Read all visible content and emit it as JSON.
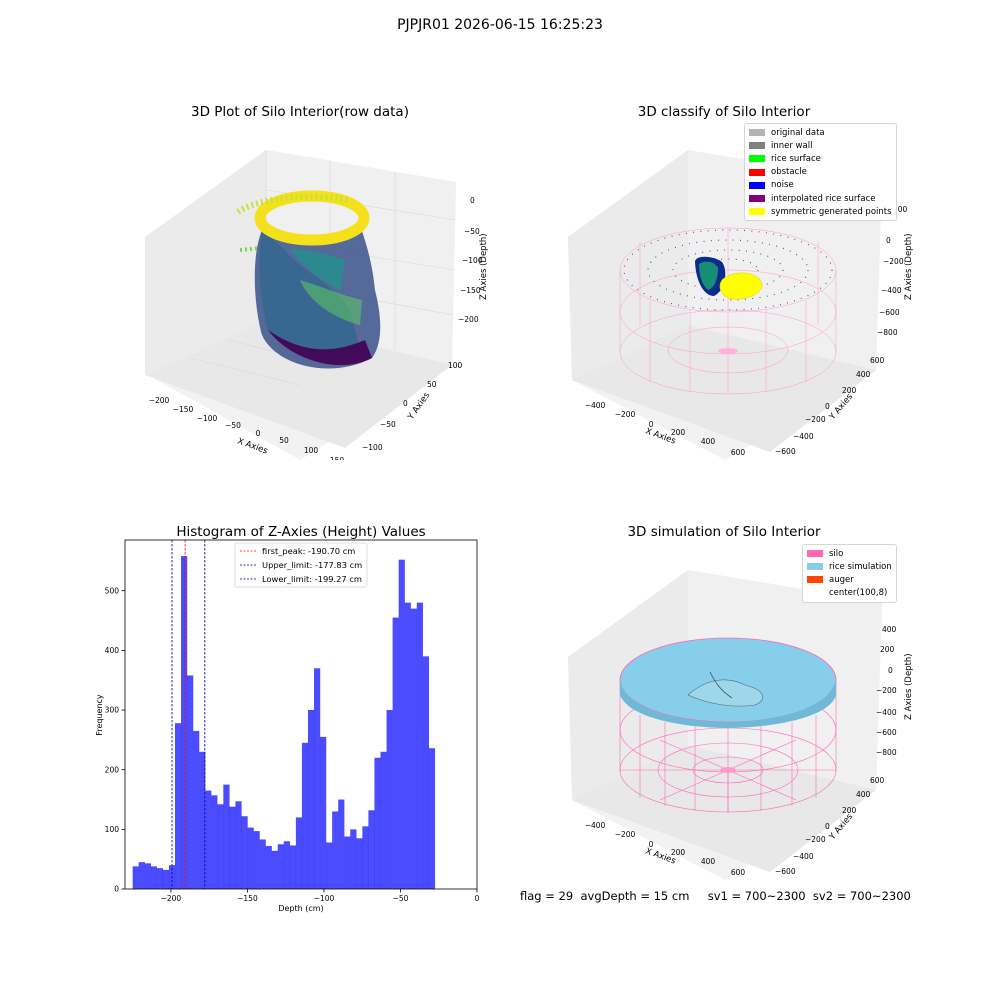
{
  "suptitle": "PJPJR01 2026-06-15 16:25:23",
  "panels": {
    "raw": {
      "title": "3D Plot of Silo Interior(row data)",
      "xlabel": "X Axies",
      "ylabel": "Y Axies",
      "zlabel": "Z Axies (Depth)",
      "xticks": [
        "−200",
        "−150",
        "−100",
        "−50",
        "0",
        "50",
        "100",
        "150"
      ],
      "yticks": [
        "100",
        "50",
        "0",
        "−50",
        "−100"
      ],
      "zticks": [
        "0",
        "−50",
        "−100",
        "−150",
        "−200"
      ],
      "colormap": "viridis"
    },
    "classify": {
      "title": "3D classify of Silo Interior",
      "xlabel": "X Axies",
      "ylabel": "Y Axies",
      "zlabel": "Z Axies (Depth)",
      "xticks": [
        "−400",
        "−200",
        "0",
        "200",
        "400",
        "600"
      ],
      "yticks": [
        "600",
        "400",
        "200",
        "0",
        "−200",
        "−400",
        "−600"
      ],
      "zticks": [
        "200",
        "0",
        "−200",
        "−400",
        "−600",
        "−800"
      ],
      "legend": [
        {
          "label": "original data",
          "color": "#b3b3b3"
        },
        {
          "label": "inner wall",
          "color": "#808080"
        },
        {
          "label": "rice surface",
          "color": "#00ff00"
        },
        {
          "label": "obstacle",
          "color": "#ff0000"
        },
        {
          "label": "noise",
          "color": "#0000ff"
        },
        {
          "label": "interpolated rice surface",
          "color": "#800080"
        },
        {
          "label": "symmetric generated points",
          "color": "#ffff00"
        }
      ]
    },
    "simulation": {
      "title": "3D simulation of Silo Interior",
      "xlabel": "X Axies",
      "ylabel": "Y Axies",
      "zlabel": "Z Axies (Depth)",
      "xticks": [
        "−400",
        "−200",
        "0",
        "200",
        "400",
        "600"
      ],
      "yticks": [
        "600",
        "400",
        "200",
        "0",
        "−200",
        "−400",
        "−600"
      ],
      "zticks": [
        "400",
        "200",
        "0",
        "−200",
        "−400",
        "−600",
        "−800"
      ],
      "legend": [
        {
          "label": "silo",
          "color": "#ff69b4"
        },
        {
          "label": "rice simulation",
          "color": "#87ceeb"
        },
        {
          "label": "auger",
          "color": "#ff4500"
        },
        {
          "label": "center(100,8)",
          "color": "#ffffff"
        }
      ]
    }
  },
  "footer": "flag = 29  avgDepth = 15 cm     sv1 = 700~2300  sv2 = 700~2300",
  "chart_data": {
    "type": "bar",
    "title": "Histogram of Z-Axies (Height) Values",
    "xlabel": "Depth (cm)",
    "ylabel": "Frequency",
    "xlim": [
      -230,
      0
    ],
    "ylim": [
      0,
      585
    ],
    "xticks": [
      -200,
      -150,
      -100,
      -50,
      0
    ],
    "xtick_labels": [
      "−200",
      "−150",
      "−100",
      "−50",
      "0"
    ],
    "yticks": [
      0,
      100,
      200,
      300,
      400,
      500
    ],
    "bar_color": "#0000ff",
    "bin_start": -225.0,
    "bin_width": 3.95,
    "values": [
      38,
      45,
      43,
      38,
      35,
      32,
      40,
      278,
      558,
      358,
      265,
      230,
      165,
      157,
      142,
      175,
      138,
      147,
      122,
      103,
      97,
      83,
      72,
      64,
      75,
      80,
      73,
      120,
      245,
      300,
      370,
      255,
      78,
      130,
      150,
      88,
      100,
      85,
      105,
      132,
      220,
      230,
      300,
      455,
      552,
      480,
      470,
      480,
      390,
      236
    ],
    "lines": [
      {
        "x": -190.7,
        "color": "#ff0000",
        "label": "first_peak: -190.70 cm"
      },
      {
        "x": -177.83,
        "color": "#00008b",
        "label": "Upper_limit: -177.83 cm"
      },
      {
        "x": -199.27,
        "color": "#00008b",
        "label": "Lower_limit: -199.27 cm"
      }
    ],
    "legend_position": "top-center"
  }
}
